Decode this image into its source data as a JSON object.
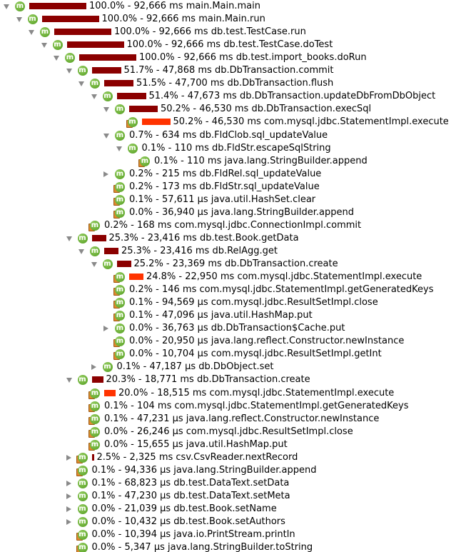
{
  "rows": [
    {
      "indent": 0,
      "toggle": "expanded",
      "icon": "method",
      "pct": 100.0,
      "bar_color": "dark",
      "text": "100.0% - 92,666 ms main.Main.main"
    },
    {
      "indent": 1,
      "toggle": "expanded",
      "icon": "method",
      "pct": 100.0,
      "bar_color": "dark",
      "text": "100.0% - 92,666 ms main.Main.run"
    },
    {
      "indent": 2,
      "toggle": "expanded",
      "icon": "method",
      "pct": 100.0,
      "bar_color": "dark",
      "text": "100.0% - 92,666 ms db.test.TestCase.run"
    },
    {
      "indent": 3,
      "toggle": "expanded",
      "icon": "method",
      "pct": 100.0,
      "bar_color": "dark",
      "text": "100.0% - 92,666 ms db.test.TestCase.doTest"
    },
    {
      "indent": 4,
      "toggle": "expanded",
      "icon": "method",
      "pct": 100.0,
      "bar_color": "dark",
      "text": "100.0% - 92,666 ms db.test.import_books.doRun"
    },
    {
      "indent": 5,
      "toggle": "expanded",
      "icon": "method",
      "pct": 51.7,
      "bar_color": "dark",
      "text": "51.7% - 47,868 ms db.DbTransaction.commit"
    },
    {
      "indent": 6,
      "toggle": "expanded",
      "icon": "method",
      "pct": 51.5,
      "bar_color": "dark",
      "text": "51.5% - 47,700 ms db.DbTransaction.flush"
    },
    {
      "indent": 7,
      "toggle": "expanded",
      "icon": "method",
      "pct": 51.4,
      "bar_color": "dark",
      "text": "51.4% - 47,673 ms db.DbTransaction.updateDbFromDbObject"
    },
    {
      "indent": 8,
      "toggle": "expanded",
      "icon": "method",
      "pct": 50.2,
      "bar_color": "dark",
      "text": "50.2% - 46,530 ms db.DbTransaction.execSql"
    },
    {
      "indent": 9,
      "toggle": "none",
      "icon": "method-leaf",
      "pct": 50.2,
      "bar_color": "red",
      "text": "50.2% - 46,530 ms com.mysql.jdbc.StatementImpl.execute"
    },
    {
      "indent": 8,
      "toggle": "expanded",
      "icon": "method",
      "pct": 0.7,
      "bar_color": "none",
      "text": "0.7% - 634 ms db.FldClob.sql_updateValue"
    },
    {
      "indent": 9,
      "toggle": "expanded",
      "icon": "method",
      "pct": 0.1,
      "bar_color": "none",
      "text": "0.1% - 110 ms db.FldStr.escapeSqlString"
    },
    {
      "indent": 10,
      "toggle": "none",
      "icon": "method-leaf",
      "pct": 0.1,
      "bar_color": "none",
      "text": "0.1% - 110 ms java.lang.StringBuilder.append"
    },
    {
      "indent": 8,
      "toggle": "collapsed",
      "icon": "method",
      "pct": 0.2,
      "bar_color": "none",
      "text": "0.2% - 215 ms db.FldRel.sql_updateValue"
    },
    {
      "indent": 8,
      "toggle": "none",
      "icon": "method-leaf",
      "pct": 0.2,
      "bar_color": "none",
      "text": "0.2% - 173 ms db.FldStr.sql_updateValue"
    },
    {
      "indent": 8,
      "toggle": "none",
      "icon": "method-leaf",
      "pct": 0.1,
      "bar_color": "none",
      "text": "0.1% - 57,611 µs java.util.HashSet.clear"
    },
    {
      "indent": 8,
      "toggle": "none",
      "icon": "method-leaf",
      "pct": 0.0,
      "bar_color": "none",
      "text": "0.0% - 36,940 µs java.lang.StringBuilder.append"
    },
    {
      "indent": 6,
      "toggle": "none",
      "icon": "method-leaf",
      "pct": 0.2,
      "bar_color": "none",
      "text": "0.2% - 168 ms com.mysql.jdbc.ConnectionImpl.commit"
    },
    {
      "indent": 5,
      "toggle": "expanded",
      "icon": "method",
      "pct": 25.3,
      "bar_color": "dark",
      "text": "25.3% - 23,416 ms db.test.Book.getData"
    },
    {
      "indent": 6,
      "toggle": "expanded",
      "icon": "method",
      "pct": 25.3,
      "bar_color": "dark",
      "text": "25.3% - 23,416 ms db.RelAgg.get"
    },
    {
      "indent": 7,
      "toggle": "expanded",
      "icon": "method",
      "pct": 25.2,
      "bar_color": "dark",
      "text": "25.2% - 23,369 ms db.DbTransaction.create"
    },
    {
      "indent": 8,
      "toggle": "none",
      "icon": "method-leaf",
      "pct": 24.8,
      "bar_color": "red",
      "text": "24.8% - 22,950 ms com.mysql.jdbc.StatementImpl.execute"
    },
    {
      "indent": 8,
      "toggle": "none",
      "icon": "method-leaf",
      "pct": 0.2,
      "bar_color": "none",
      "text": "0.2% - 146 ms com.mysql.jdbc.StatementImpl.getGeneratedKeys"
    },
    {
      "indent": 8,
      "toggle": "none",
      "icon": "method-leaf",
      "pct": 0.1,
      "bar_color": "none",
      "text": "0.1% - 94,569 µs com.mysql.jdbc.ResultSetImpl.close"
    },
    {
      "indent": 8,
      "toggle": "none",
      "icon": "method-leaf",
      "pct": 0.1,
      "bar_color": "none",
      "text": "0.1% - 47,096 µs java.util.HashMap.put"
    },
    {
      "indent": 8,
      "toggle": "collapsed",
      "icon": "method",
      "pct": 0.0,
      "bar_color": "none",
      "text": "0.0% - 36,763 µs db.DbTransaction$Cache.put"
    },
    {
      "indent": 8,
      "toggle": "none",
      "icon": "method-leaf",
      "pct": 0.0,
      "bar_color": "none",
      "text": "0.0% - 20,950 µs java.lang.reflect.Constructor.newInstance"
    },
    {
      "indent": 8,
      "toggle": "none",
      "icon": "method-leaf",
      "pct": 0.0,
      "bar_color": "none",
      "text": "0.0% - 10,704 µs com.mysql.jdbc.ResultSetImpl.getInt"
    },
    {
      "indent": 7,
      "toggle": "collapsed",
      "icon": "method",
      "pct": 0.1,
      "bar_color": "none",
      "text": "0.1% - 47,187 µs db.DbObject.set"
    },
    {
      "indent": 5,
      "toggle": "expanded",
      "icon": "method",
      "pct": 20.3,
      "bar_color": "dark",
      "text": "20.3% - 18,771 ms db.DbTransaction.create"
    },
    {
      "indent": 6,
      "toggle": "none",
      "icon": "method-leaf",
      "pct": 20.0,
      "bar_color": "red",
      "text": "20.0% - 18,515 ms com.mysql.jdbc.StatementImpl.execute"
    },
    {
      "indent": 6,
      "toggle": "none",
      "icon": "method-leaf",
      "pct": 0.1,
      "bar_color": "none",
      "text": "0.1% - 104 ms com.mysql.jdbc.StatementImpl.getGeneratedKeys"
    },
    {
      "indent": 6,
      "toggle": "none",
      "icon": "method-leaf",
      "pct": 0.1,
      "bar_color": "none",
      "text": "0.1% - 47,231 µs java.lang.reflect.Constructor.newInstance"
    },
    {
      "indent": 6,
      "toggle": "none",
      "icon": "method-leaf",
      "pct": 0.0,
      "bar_color": "none",
      "text": "0.0% - 26,246 µs com.mysql.jdbc.ResultSetImpl.close"
    },
    {
      "indent": 6,
      "toggle": "none",
      "icon": "method-leaf",
      "pct": 0.0,
      "bar_color": "none",
      "text": "0.0% - 15,655 µs java.util.HashMap.put"
    },
    {
      "indent": 5,
      "toggle": "collapsed",
      "icon": "method-leaf",
      "pct": 2.5,
      "bar_color": "dark",
      "text": "2.5% - 2,325 ms csv.CsvReader.nextRecord"
    },
    {
      "indent": 5,
      "toggle": "none",
      "icon": "method-leaf",
      "pct": 0.1,
      "bar_color": "none",
      "text": "0.1% - 94,336 µs java.lang.StringBuilder.append"
    },
    {
      "indent": 5,
      "toggle": "collapsed",
      "icon": "method",
      "pct": 0.1,
      "bar_color": "none",
      "text": "0.1% - 68,823 µs db.test.DataText.setData"
    },
    {
      "indent": 5,
      "toggle": "collapsed",
      "icon": "method",
      "pct": 0.1,
      "bar_color": "none",
      "text": "0.1% - 47,230 µs db.test.DataText.setMeta"
    },
    {
      "indent": 5,
      "toggle": "collapsed",
      "icon": "method",
      "pct": 0.0,
      "bar_color": "none",
      "text": "0.0% - 21,039 µs db.test.Book.setName"
    },
    {
      "indent": 5,
      "toggle": "collapsed",
      "icon": "method",
      "pct": 0.0,
      "bar_color": "none",
      "text": "0.0% - 10,432 µs db.test.Book.setAuthors"
    },
    {
      "indent": 5,
      "toggle": "none",
      "icon": "method-leaf",
      "pct": 0.0,
      "bar_color": "none",
      "text": "0.0% - 10,394 µs java.io.PrintStream.println"
    },
    {
      "indent": 5,
      "toggle": "none",
      "icon": "method-leaf",
      "pct": 0.0,
      "bar_color": "none",
      "text": "0.0% - 5,347 µs java.lang.StringBuilder.toString"
    }
  ],
  "colors": {
    "bar_dark": "#8b0000",
    "bar_hot": "#ff3300",
    "icon_green": "#5fab24"
  },
  "icon_letter": "m"
}
